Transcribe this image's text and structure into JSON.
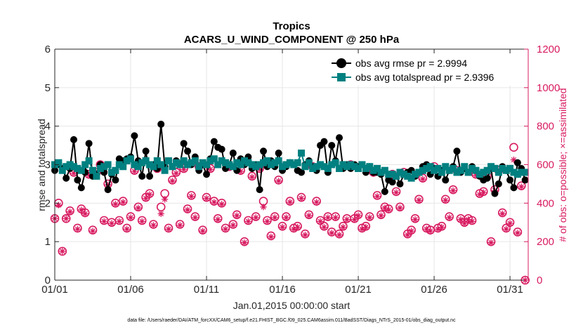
{
  "chart_data": {
    "type": "line",
    "title": "Tropics",
    "subtitle": "ACARS_U_WIND_COMPONENT @ 250 hPa",
    "xlabel": "Jan.01,2015 00:00:00 start",
    "ylabel": "rmse and totalspread",
    "y2label": "# of obs: o=possible; ×=assimilated",
    "xlim": [
      1,
      32.2
    ],
    "ylim": [
      0,
      6
    ],
    "y2lim": [
      0,
      1200
    ],
    "x_ticks": [
      1,
      6,
      11,
      16,
      21,
      26,
      31
    ],
    "x_tick_labels": [
      "01/01",
      "01/06",
      "01/11",
      "01/16",
      "01/21",
      "01/26",
      "01/31"
    ],
    "y_ticks": [
      "0",
      "1",
      "2",
      "3",
      "4",
      "5",
      "6"
    ],
    "y2_ticks": [
      "0",
      "200",
      "400",
      "600",
      "800",
      "1000",
      "1200"
    ],
    "grid": true,
    "legend_position": "top-right",
    "colors": {
      "rmse": "#000000",
      "totalspread": "#008080",
      "obs": "#d81b60",
      "axis": "#262626"
    },
    "footer": "data file: /Users/raeder/DAI/ATM_forcXX/CAM6_setup/f.e21.FHIST_BGC.f09_025.CAM6assim.011/BadSST/Diags_NTrS_2015-01/obs_diag_output.nc",
    "series": [
      {
        "name": "obs avg rmse pr = 2.9994",
        "style": "black-circle-line",
        "x": [
          1.0,
          1.25,
          1.5,
          1.75,
          2.0,
          2.25,
          2.5,
          2.75,
          3.0,
          3.25,
          3.5,
          3.75,
          4.0,
          4.25,
          4.5,
          4.75,
          5.0,
          5.25,
          5.5,
          5.75,
          6.0,
          6.25,
          6.5,
          6.75,
          7.0,
          7.25,
          7.5,
          7.75,
          8.0,
          8.25,
          8.5,
          8.75,
          9.0,
          9.25,
          9.5,
          9.75,
          10.0,
          10.25,
          10.5,
          10.75,
          11.0,
          11.25,
          11.5,
          11.75,
          12.0,
          12.25,
          12.5,
          12.75,
          13.0,
          13.25,
          13.5,
          13.75,
          14.0,
          14.25,
          14.5,
          14.75,
          15.0,
          15.25,
          15.5,
          15.75,
          16.0,
          16.25,
          16.5,
          16.75,
          17.0,
          17.25,
          17.5,
          17.75,
          18.0,
          18.25,
          18.5,
          18.75,
          19.0,
          19.25,
          19.5,
          19.75,
          20.0,
          20.25,
          20.5,
          20.75,
          21.0,
          21.25,
          21.5,
          21.75,
          22.0,
          22.25,
          22.5,
          22.75,
          23.0,
          23.25,
          23.5,
          23.75,
          24.0,
          24.25,
          24.5,
          24.75,
          25.0,
          25.25,
          25.5,
          25.75,
          26.0,
          26.25,
          26.5,
          26.75,
          27.0,
          27.25,
          27.5,
          27.75,
          28.0,
          28.25,
          28.5,
          28.75,
          29.0,
          29.25,
          29.5,
          29.75,
          30.0,
          30.25,
          30.5,
          30.75,
          31.0,
          31.25,
          31.5,
          31.75,
          32.0
        ],
        "values": [
          2.85,
          3.0,
          2.9,
          2.65,
          2.9,
          3.65,
          2.6,
          2.4,
          2.8,
          3.55,
          2.7,
          2.75,
          3.0,
          2.8,
          2.35,
          2.75,
          2.6,
          3.15,
          3.1,
          3.15,
          3.2,
          3.75,
          3.1,
          2.7,
          3.35,
          2.7,
          3.0,
          2.9,
          4.05,
          2.95,
          3.1,
          2.95,
          3.1,
          3.0,
          3.55,
          3.35,
          3.0,
          3.2,
          2.85,
          3.0,
          2.75,
          3.15,
          3.6,
          3.45,
          3.4,
          2.9,
          3.0,
          3.3,
          2.85,
          3.15,
          3.0,
          3.2,
          2.9,
          3.0,
          2.35,
          3.35,
          2.95,
          3.1,
          2.95,
          3.3,
          2.85,
          2.95,
          3.05,
          3.0,
          2.85,
          2.8,
          3.0,
          3.1,
          2.95,
          2.85,
          3.5,
          3.6,
          2.8,
          3.5,
          3.1,
          3.7,
          2.9,
          3.0,
          2.9,
          3.0,
          2.95,
          3.0,
          2.8,
          2.95,
          2.8,
          2.8,
          2.75,
          2.3,
          2.6,
          2.55,
          2.7,
          2.5,
          2.75,
          2.8,
          2.85,
          2.7,
          2.8,
          2.95,
          3.0,
          2.75,
          2.9,
          2.7,
          2.85,
          2.6,
          2.85,
          2.95,
          3.35,
          2.8,
          2.9,
          2.8,
          2.95,
          2.85,
          2.7,
          2.6,
          2.65,
          2.9,
          2.25,
          2.5,
          2.95,
          2.85,
          2.6,
          2.4,
          3.05,
          2.9,
          2.6
        ]
      },
      {
        "name": "obs avg totalspread pr = 2.9396",
        "style": "teal-square-line",
        "x": [
          1.0,
          1.25,
          1.5,
          1.75,
          2.0,
          2.25,
          2.5,
          2.75,
          3.0,
          3.25,
          3.5,
          3.75,
          4.0,
          4.25,
          4.5,
          4.75,
          5.0,
          5.25,
          5.5,
          5.75,
          6.0,
          6.25,
          6.5,
          6.75,
          7.0,
          7.25,
          7.5,
          7.75,
          8.0,
          8.25,
          8.5,
          8.75,
          9.0,
          9.25,
          9.5,
          9.75,
          10.0,
          10.25,
          10.5,
          10.75,
          11.0,
          11.25,
          11.5,
          11.75,
          12.0,
          12.25,
          12.5,
          12.75,
          13.0,
          13.25,
          13.5,
          13.75,
          14.0,
          14.25,
          14.5,
          14.75,
          15.0,
          15.25,
          15.5,
          15.75,
          16.0,
          16.25,
          16.5,
          16.75,
          17.0,
          17.25,
          17.5,
          17.75,
          18.0,
          18.25,
          18.5,
          18.75,
          19.0,
          19.25,
          19.5,
          19.75,
          20.0,
          20.25,
          20.5,
          20.75,
          21.0,
          21.25,
          21.5,
          21.75,
          22.0,
          22.25,
          22.5,
          22.75,
          23.0,
          23.25,
          23.5,
          23.75,
          24.0,
          24.25,
          24.5,
          24.75,
          25.0,
          25.25,
          25.5,
          25.75,
          26.0,
          26.25,
          26.5,
          26.75,
          27.0,
          27.25,
          27.5,
          27.75,
          28.0,
          28.25,
          28.5,
          28.75,
          29.0,
          29.25,
          29.5,
          29.75,
          30.0,
          30.25,
          30.5,
          30.75,
          31.0,
          31.25,
          31.5,
          31.75,
          32.0
        ],
        "values": [
          3.0,
          3.05,
          2.85,
          2.95,
          3.0,
          2.95,
          2.9,
          2.85,
          3.0,
          3.1,
          2.85,
          2.7,
          2.9,
          2.95,
          3.0,
          2.8,
          2.85,
          3.0,
          2.95,
          3.1,
          3.15,
          3.0,
          2.95,
          3.05,
          3.1,
          3.0,
          2.95,
          3.1,
          3.0,
          2.85,
          3.1,
          2.95,
          3.05,
          3.0,
          3.1,
          3.0,
          3.05,
          3.1,
          2.95,
          3.05,
          3.0,
          3.1,
          3.15,
          3.0,
          3.1,
          3.05,
          3.0,
          2.95,
          3.05,
          3.0,
          3.1,
          3.05,
          3.0,
          2.95,
          3.0,
          3.05,
          3.1,
          3.0,
          3.05,
          3.1,
          2.95,
          3.0,
          3.05,
          3.0,
          3.05,
          3.3,
          2.95,
          3.05,
          2.9,
          2.95,
          3.0,
          2.95,
          2.9,
          3.0,
          3.05,
          2.9,
          3.0,
          2.95,
          3.0,
          2.95,
          2.9,
          3.0,
          2.9,
          2.95,
          2.85,
          2.9,
          2.8,
          2.85,
          2.75,
          2.75,
          2.7,
          2.8,
          2.75,
          2.7,
          2.65,
          2.75,
          2.8,
          2.85,
          2.9,
          2.95,
          2.85,
          2.9,
          2.8,
          2.95,
          2.85,
          2.9,
          2.8,
          2.85,
          2.95,
          2.8,
          2.9,
          2.85,
          2.75,
          2.8,
          2.85,
          2.95,
          2.9,
          2.8,
          2.9,
          2.85,
          2.9,
          2.8,
          2.75,
          2.8,
          2.8
        ]
      },
      {
        "name": "# of obs possible",
        "axis": "right",
        "style": "magenta-open-circle",
        "x": [
          1.0,
          1.25,
          1.5,
          1.75,
          2.0,
          2.25,
          2.5,
          2.75,
          3.0,
          3.25,
          3.5,
          3.75,
          4.0,
          4.25,
          4.5,
          4.75,
          5.0,
          5.25,
          5.5,
          5.75,
          6.0,
          6.25,
          6.5,
          6.75,
          7.0,
          7.25,
          7.5,
          7.75,
          8.0,
          8.25,
          8.5,
          8.75,
          9.0,
          9.25,
          9.5,
          9.75,
          10.0,
          10.25,
          10.5,
          10.75,
          11.0,
          11.25,
          11.5,
          11.75,
          12.0,
          12.25,
          12.5,
          12.75,
          13.0,
          13.25,
          13.5,
          13.75,
          14.0,
          14.25,
          14.5,
          14.75,
          15.0,
          15.25,
          15.5,
          15.75,
          16.0,
          16.25,
          16.5,
          16.75,
          17.0,
          17.25,
          17.5,
          17.75,
          18.0,
          18.25,
          18.5,
          18.75,
          19.0,
          19.25,
          19.5,
          19.75,
          20.0,
          20.25,
          20.5,
          20.75,
          21.0,
          21.25,
          21.5,
          21.75,
          22.0,
          22.25,
          22.5,
          22.75,
          23.0,
          23.25,
          23.5,
          23.75,
          24.0,
          24.25,
          24.5,
          24.75,
          25.0,
          25.25,
          25.5,
          25.75,
          26.0,
          26.25,
          26.5,
          26.75,
          27.0,
          27.25,
          27.5,
          27.75,
          28.0,
          28.25,
          28.5,
          28.75,
          29.0,
          29.25,
          29.5,
          29.75,
          30.0,
          30.25,
          30.5,
          30.75,
          31.0,
          31.25,
          31.5,
          31.75,
          32.0
        ],
        "values": [
          320,
          400,
          150,
          320,
          360,
          560,
          270,
          370,
          350,
          550,
          260,
          560,
          600,
          310,
          500,
          300,
          400,
          310,
          410,
          270,
          330,
          570,
          380,
          310,
          430,
          450,
          290,
          580,
          380,
          450,
          270,
          520,
          560,
          290,
          580,
          370,
          440,
          330,
          590,
          260,
          430,
          580,
          410,
          320,
          400,
          270,
          590,
          290,
          340,
          570,
          200,
          310,
          540,
          330,
          580,
          410,
          310,
          230,
          330,
          520,
          280,
          330,
          410,
          270,
          280,
          430,
          240,
          340,
          590,
          410,
          310,
          280,
          330,
          250,
          330,
          240,
          280,
          320,
          600,
          320,
          340,
          270,
          280,
          330,
          560,
          440,
          340,
          380,
          370,
          550,
          460,
          380,
          560,
          240,
          260,
          320,
          420,
          530,
          270,
          260,
          590,
          270,
          280,
          420,
          330,
          470,
          570,
          320,
          300,
          320,
          310,
          550,
          450,
          460,
          540,
          200,
          470,
          570,
          350,
          270,
          300,
          690,
          250,
          490,
          0
        ]
      },
      {
        "name": "# of obs assimilated",
        "axis": "right",
        "style": "magenta-asterisk",
        "x": [
          1.0,
          1.25,
          1.5,
          1.75,
          2.0,
          2.25,
          2.5,
          2.75,
          3.0,
          3.25,
          3.5,
          3.75,
          4.0,
          4.25,
          4.5,
          4.75,
          5.0,
          5.25,
          5.5,
          5.75,
          6.0,
          6.25,
          6.5,
          6.75,
          7.0,
          7.25,
          7.5,
          7.75,
          8.0,
          8.25,
          8.5,
          8.75,
          9.0,
          9.25,
          9.5,
          9.75,
          10.0,
          10.25,
          10.5,
          10.75,
          11.0,
          11.25,
          11.5,
          11.75,
          12.0,
          12.25,
          12.5,
          12.75,
          13.0,
          13.25,
          13.5,
          13.75,
          14.0,
          14.25,
          14.5,
          14.75,
          15.0,
          15.25,
          15.5,
          15.75,
          16.0,
          16.25,
          16.5,
          16.75,
          17.0,
          17.25,
          17.5,
          17.75,
          18.0,
          18.25,
          18.5,
          18.75,
          19.0,
          19.25,
          19.5,
          19.75,
          20.0,
          20.25,
          20.5,
          20.75,
          21.0,
          21.25,
          21.5,
          21.75,
          22.0,
          22.25,
          22.5,
          22.75,
          23.0,
          23.25,
          23.5,
          23.75,
          24.0,
          24.25,
          24.5,
          24.75,
          25.0,
          25.25,
          25.5,
          25.75,
          26.0,
          26.25,
          26.5,
          26.75,
          27.0,
          27.25,
          27.5,
          27.75,
          28.0,
          28.25,
          28.5,
          28.75,
          29.0,
          29.25,
          29.5,
          29.75,
          30.0,
          30.25,
          30.5,
          30.75,
          31.0,
          31.25,
          31.5,
          31.75,
          32.0
        ],
        "values": [
          320,
          390,
          150,
          320,
          355,
          555,
          265,
          365,
          345,
          545,
          255,
          555,
          595,
          305,
          495,
          295,
          395,
          305,
          405,
          265,
          325,
          565,
          375,
          305,
          425,
          445,
          285,
          575,
          345,
          420,
          265,
          515,
          555,
          285,
          575,
          365,
          435,
          325,
          585,
          255,
          425,
          575,
          405,
          315,
          395,
          265,
          585,
          285,
          335,
          565,
          195,
          305,
          535,
          325,
          575,
          380,
          305,
          225,
          325,
          515,
          275,
          325,
          405,
          265,
          275,
          425,
          235,
          335,
          585,
          405,
          305,
          275,
          325,
          245,
          325,
          235,
          275,
          315,
          595,
          315,
          335,
          265,
          275,
          325,
          555,
          435,
          335,
          375,
          365,
          545,
          455,
          375,
          555,
          235,
          255,
          315,
          415,
          525,
          265,
          255,
          585,
          265,
          275,
          415,
          325,
          465,
          565,
          315,
          295,
          315,
          305,
          545,
          445,
          455,
          535,
          195,
          465,
          565,
          345,
          265,
          295,
          625,
          245,
          485,
          0
        ]
      }
    ]
  }
}
